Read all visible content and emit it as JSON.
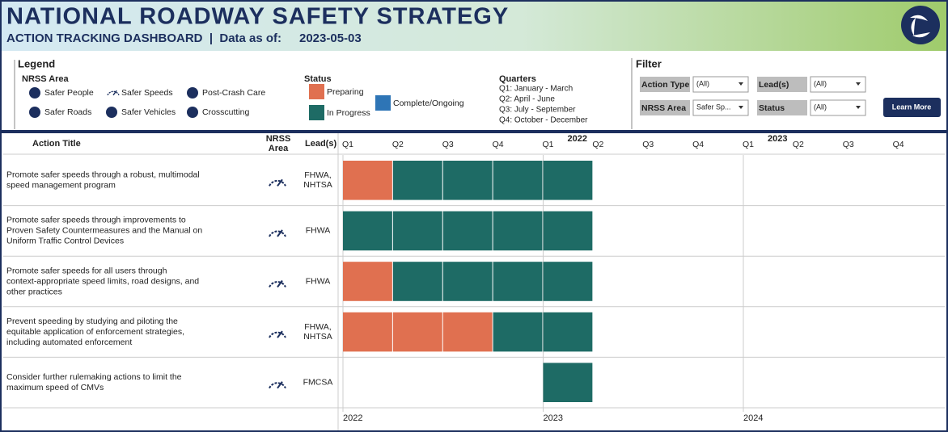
{
  "header": {
    "title": "NATIONAL ROADWAY SAFETY STRATEGY",
    "subtitle": "ACTION TRACKING DASHBOARD  |  Data as of:",
    "date": "2023-05-03"
  },
  "legend": {
    "title": "Legend",
    "nrss_title": "NRSS Area",
    "areas": [
      "Safer People",
      "Safer Speeds",
      "Post-Crash Care",
      "Safer Roads",
      "Safer Vehicles",
      "Crosscutting"
    ],
    "status_title": "Status",
    "statuses": [
      {
        "name": "Preparing",
        "color": "#e07050"
      },
      {
        "name": "In Progress",
        "color": "#1e6b65"
      },
      {
        "name": "Complete/Ongoing",
        "color": "#2e75b6"
      }
    ],
    "quarters_title": "Quarters",
    "quarters": [
      "Q1: January - March",
      "Q2: April - June",
      "Q3: July - September",
      "Q4: October - December"
    ]
  },
  "filter": {
    "title": "Filter",
    "controls": [
      {
        "label": "Action Type",
        "value": "(All)"
      },
      {
        "label": "Lead(s)",
        "value": "(All)"
      },
      {
        "label": "NRSS Area",
        "value": "Safer Sp..."
      },
      {
        "label": "Status",
        "value": "(All)"
      }
    ],
    "button": "Learn More"
  },
  "table": {
    "headers": [
      "Action Title",
      "NRSS",
      "Area",
      "Lead(s)"
    ],
    "years": [
      "2022",
      "2023",
      "2024"
    ],
    "quarter_labels": [
      "Q1",
      "Q2",
      "Q3",
      "Q4"
    ],
    "rows": [
      {
        "title_lines": [
          "Promote safer speeds through a robust, multimodal",
          "speed management program"
        ],
        "lead_lines": [
          "FHWA,",
          "NHTSA"
        ],
        "quarters": [
          "Preparing",
          "In Progress",
          "In Progress",
          "In Progress",
          "In Progress",
          null,
          null,
          null,
          null,
          null,
          null,
          null
        ]
      },
      {
        "title_lines": [
          "Promote safer speeds through improvements to",
          "Proven Safety Countermeasures and the Manual on",
          "Uniform Traffic Control Devices"
        ],
        "lead_lines": [
          "FHWA"
        ],
        "quarters": [
          "In Progress",
          "In Progress",
          "In Progress",
          "In Progress",
          "In Progress",
          null,
          null,
          null,
          null,
          null,
          null,
          null
        ]
      },
      {
        "title_lines": [
          "Promote safer speeds for all users through",
          "context-appropriate speed limits, road designs, and",
          "other practices"
        ],
        "lead_lines": [
          "FHWA"
        ],
        "quarters": [
          "Preparing",
          "In Progress",
          "In Progress",
          "In Progress",
          "In Progress",
          null,
          null,
          null,
          null,
          null,
          null,
          null
        ]
      },
      {
        "title_lines": [
          "Prevent speeding by studying and piloting the",
          "equitable application of enforcement strategies,",
          "including automated enforcement"
        ],
        "lead_lines": [
          "FHWA,",
          "NHTSA"
        ],
        "quarters": [
          "Preparing",
          "Preparing",
          "Preparing",
          "In Progress",
          "In Progress",
          null,
          null,
          null,
          null,
          null,
          null,
          null
        ]
      },
      {
        "title_lines": [
          "Consider further rulemaking actions to limit the",
          "maximum speed of CMVs"
        ],
        "lead_lines": [
          "FMCSA"
        ],
        "quarters": [
          null,
          null,
          null,
          null,
          "In Progress",
          null,
          null,
          null,
          null,
          null,
          null,
          null
        ]
      }
    ]
  }
}
